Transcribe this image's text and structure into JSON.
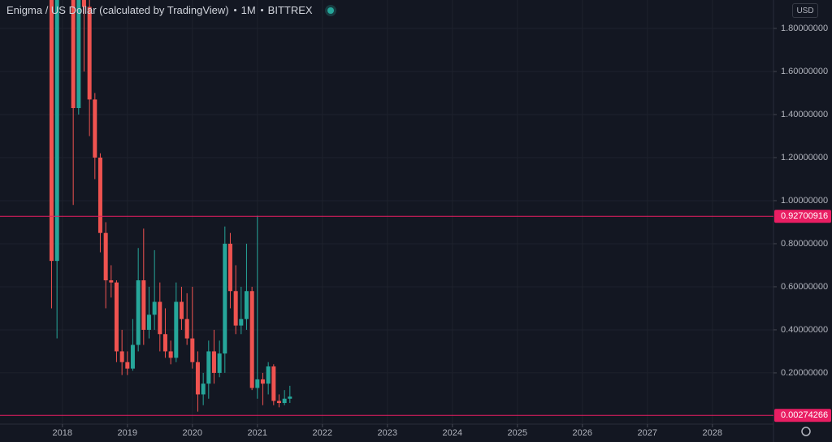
{
  "chart_data": {
    "type": "candlestick",
    "title": "Enigma / US Dollar (calculated by TradingView)",
    "interval": "1M",
    "exchange": "BITTREX",
    "currency": "USD",
    "up_color": "#26a69a",
    "down_color": "#ef5350",
    "grid": true,
    "x": [
      2017.833,
      2017.917,
      2018.0,
      2018.083,
      2018.167,
      2018.25,
      2018.333,
      2018.417,
      2018.5,
      2018.583,
      2018.667,
      2018.75,
      2018.833,
      2018.917,
      2019.0,
      2019.083,
      2019.167,
      2019.25,
      2019.333,
      2019.417,
      2019.5,
      2019.583,
      2019.667,
      2019.75,
      2019.833,
      2019.917,
      2020.0,
      2020.083,
      2020.167,
      2020.25,
      2020.333,
      2020.417,
      2020.5,
      2020.583,
      2020.667,
      2020.75,
      2020.833,
      2020.917,
      2021.0,
      2021.083,
      2021.167,
      2021.25,
      2021.333,
      2021.417,
      2021.5
    ],
    "open": [
      2.6,
      0.72,
      3.5,
      4.0,
      2.5,
      1.43,
      2.3,
      1.9,
      1.47,
      1.2,
      0.85,
      0.63,
      0.62,
      0.3,
      0.25,
      0.22,
      0.33,
      0.63,
      0.4,
      0.47,
      0.53,
      0.38,
      0.3,
      0.27,
      0.53,
      0.45,
      0.36,
      0.25,
      0.1,
      0.15,
      0.3,
      0.2,
      0.29,
      0.8,
      0.58,
      0.42,
      0.45,
      0.58,
      0.13,
      0.17,
      0.15,
      0.23,
      0.07,
      0.06,
      0.08
    ],
    "high": [
      3.0,
      4.0,
      5.6,
      4.5,
      2.9,
      2.9,
      2.4,
      1.95,
      1.5,
      1.22,
      0.9,
      0.7,
      0.63,
      0.4,
      0.3,
      0.45,
      0.78,
      0.87,
      0.6,
      0.77,
      0.62,
      0.5,
      0.35,
      0.62,
      0.6,
      0.57,
      0.6,
      0.3,
      0.2,
      0.35,
      0.4,
      0.35,
      0.88,
      0.85,
      0.7,
      0.6,
      0.8,
      0.6,
      0.93,
      0.2,
      0.25,
      0.24,
      0.1,
      0.12,
      0.14
    ],
    "low": [
      0.5,
      0.36,
      2.2,
      2.0,
      0.98,
      1.4,
      1.6,
      1.3,
      1.1,
      0.76,
      0.5,
      0.55,
      0.25,
      0.19,
      0.19,
      0.21,
      0.3,
      0.33,
      0.36,
      0.4,
      0.3,
      0.27,
      0.24,
      0.25,
      0.4,
      0.33,
      0.22,
      0.02,
      0.05,
      0.08,
      0.15,
      0.18,
      0.2,
      0.5,
      0.38,
      0.38,
      0.4,
      0.12,
      0.08,
      0.05,
      0.1,
      0.05,
      0.04,
      0.05,
      0.06
    ],
    "close": [
      0.72,
      3.5,
      4.0,
      2.5,
      1.43,
      2.3,
      1.9,
      1.47,
      1.2,
      0.85,
      0.63,
      0.62,
      0.3,
      0.25,
      0.22,
      0.33,
      0.63,
      0.4,
      0.47,
      0.53,
      0.38,
      0.3,
      0.27,
      0.53,
      0.45,
      0.36,
      0.25,
      0.1,
      0.15,
      0.3,
      0.2,
      0.29,
      0.8,
      0.58,
      0.42,
      0.45,
      0.58,
      0.13,
      0.17,
      0.15,
      0.23,
      0.07,
      0.06,
      0.08,
      0.09
    ],
    "price_lines": [
      {
        "value": 0.92700916,
        "color": "#e91e63"
      },
      {
        "value": 0.00274266,
        "color": "#e91e63"
      }
    ],
    "xlim": [
      2017.04,
      2028.94
    ],
    "ylim": [
      -0.038,
      1.932
    ],
    "xticks": [
      2018,
      2019,
      2020,
      2021,
      2022,
      2023,
      2024,
      2025,
      2026,
      2027,
      2028
    ],
    "yticks": [
      {
        "value": 0.2,
        "label": "0.20000000"
      },
      {
        "value": 0.4,
        "label": "0.40000000"
      },
      {
        "value": 0.6,
        "label": "0.60000000"
      },
      {
        "value": 0.8,
        "label": "0.80000000"
      },
      {
        "value": 1.0,
        "label": "1.00000000"
      },
      {
        "value": 1.2,
        "label": "1.20000000"
      },
      {
        "value": 1.4,
        "label": "1.40000000"
      },
      {
        "value": 1.6,
        "label": "1.60000000"
      },
      {
        "value": 1.8,
        "label": "1.80000000"
      }
    ]
  }
}
